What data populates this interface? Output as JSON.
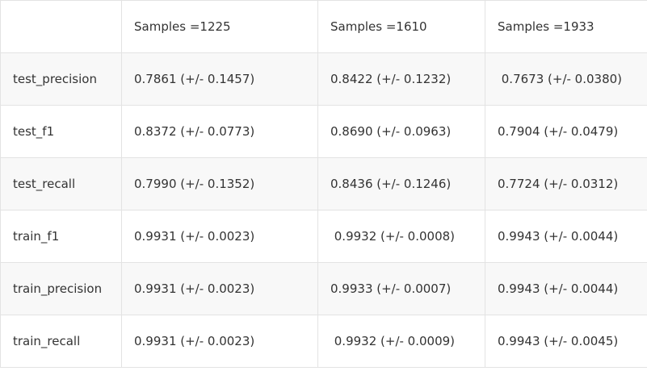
{
  "table": {
    "header": [
      "",
      "Samples =1225",
      "Samples =1610",
      "Samples =1933"
    ],
    "rows": [
      [
        "test_precision",
        "0.7861 (+/- 0.1457)",
        "0.8422 (+/- 0.1232)",
        " 0.7673 (+/- 0.0380)"
      ],
      [
        "test_f1",
        "0.8372 (+/- 0.0773)",
        "0.8690 (+/- 0.0963)",
        "0.7904 (+/- 0.0479)"
      ],
      [
        "test_recall",
        "0.7990 (+/- 0.1352)",
        "0.8436 (+/- 0.1246)",
        "0.7724 (+/- 0.0312)"
      ],
      [
        "train_f1",
        "0.9931 (+/- 0.0023)",
        " 0.9932 (+/- 0.0008)",
        "0.9943 (+/- 0.0044)"
      ],
      [
        "train_precision",
        "0.9931 (+/- 0.0023)",
        "0.9933 (+/- 0.0007)",
        "0.9943 (+/- 0.0044)"
      ],
      [
        "train_recall",
        "0.9931 (+/- 0.0023)",
        " 0.9932 (+/- 0.0009)",
        "0.9943 (+/- 0.0045)"
      ]
    ]
  }
}
